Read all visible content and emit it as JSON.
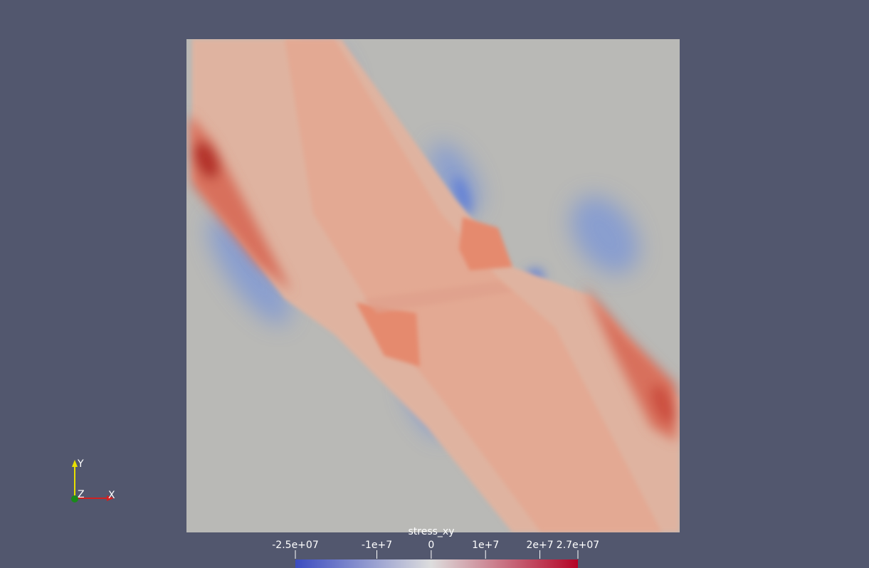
{
  "colorbar": {
    "title": "stress_xy",
    "range": [
      -25000000,
      27000000
    ],
    "ticks": [
      {
        "value": -25000000,
        "label": "-2.5e+07"
      },
      {
        "value": -10000000,
        "label": "-1e+7"
      },
      0,
      {
        "value": 10000000,
        "label": "1e+7"
      },
      {
        "value": 20000000,
        "label": "2e+7"
      },
      {
        "value": 27000000,
        "label": "2.7e+07"
      }
    ],
    "colors": [
      "#3b4cc0",
      "#dddddd",
      "#b40426"
    ]
  },
  "axes": {
    "x": "X",
    "y": "Y",
    "z": "Z"
  }
}
